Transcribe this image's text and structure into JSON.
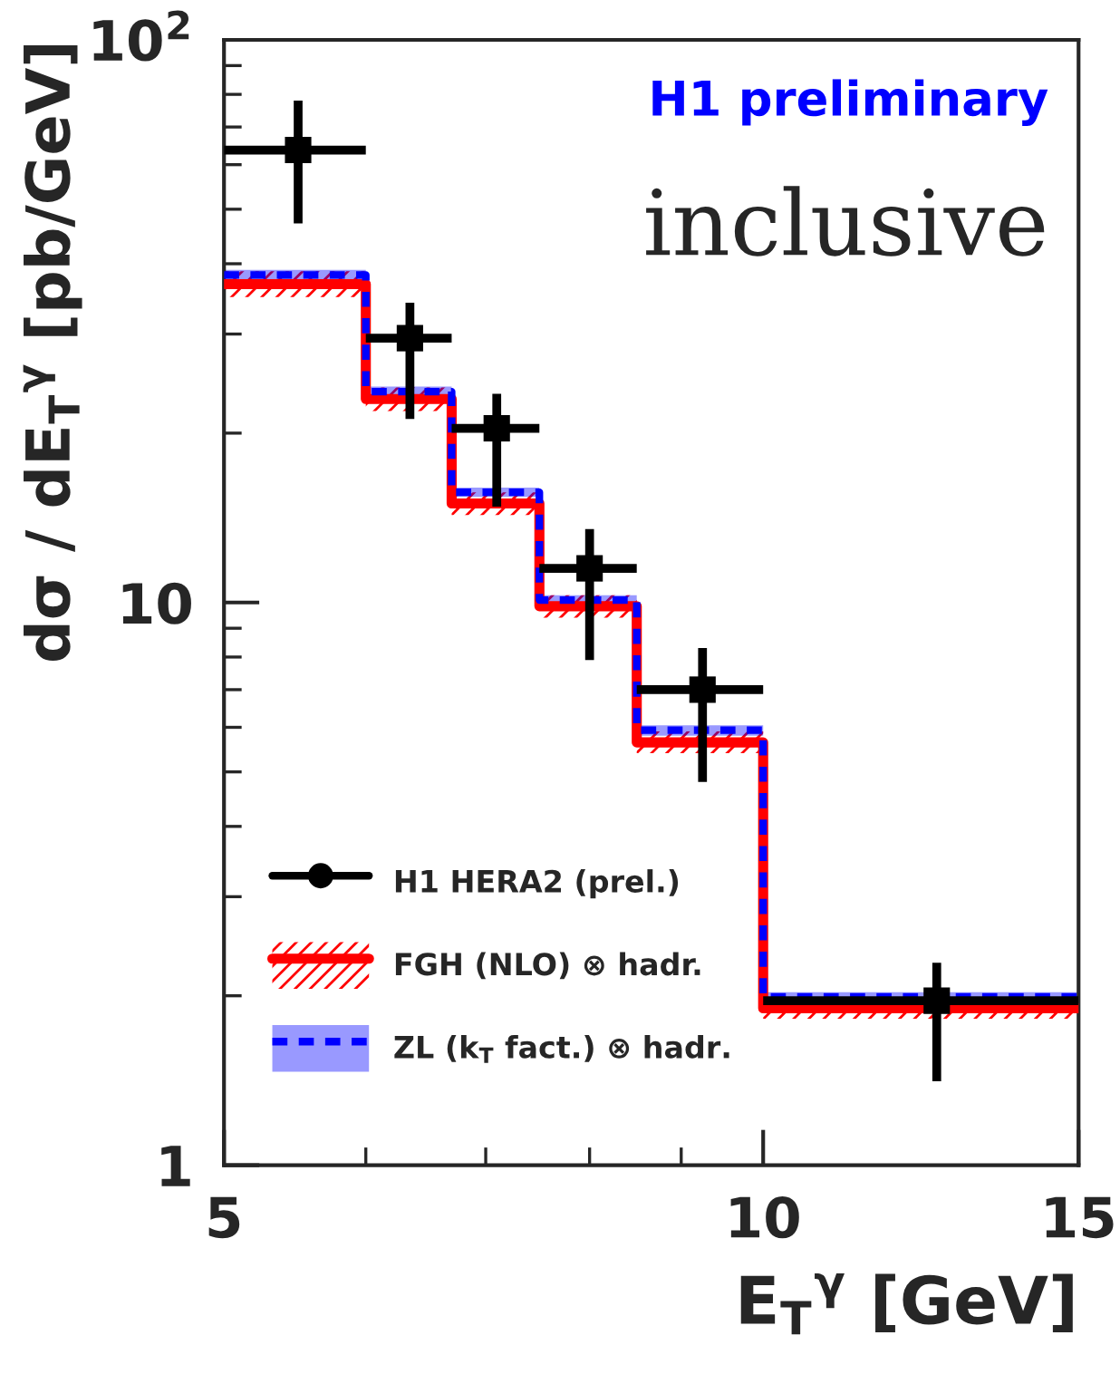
{
  "chart_data": {
    "type": "scatter",
    "xlabel": "E$_{T}$$^{γ}$ [GeV]",
    "ylabel": "dσ / dE$_{T}$$^{γ}$ [pb/GeV]",
    "annotations": [
      "H1 preliminary",
      "inclusive"
    ],
    "log": "xy",
    "xlim": [
      5,
      15
    ],
    "xticks": [
      5,
      10,
      15
    ],
    "ylim": [
      1,
      100
    ],
    "yticks": [
      1,
      10,
      {
        "value": 100,
        "label": "10$^{2}$"
      }
    ],
    "grid": false,
    "legend": "bottom left",
    "series": [
      {
        "name": "H1 HERA2 (prel.)",
        "type": "scatter",
        "color": "#000000",
        "marker": "square",
        "x": [
          5.5,
          6.35,
          7.1,
          8.0,
          9.25,
          12.5
        ],
        "values": [
          63.7,
          29.5,
          20.4,
          11.5,
          7.0,
          1.96
        ],
        "errors": [
          [
            47.2,
            78
          ],
          [
            21.2,
            34.1
          ],
          [
            14.8,
            23.5
          ],
          [
            7.9,
            13.5
          ],
          [
            4.8,
            8.3
          ],
          [
            1.41,
            2.29
          ]
        ],
        "xerrors": [
          [
            5,
            6
          ],
          [
            6,
            6.7
          ],
          [
            6.7,
            7.5
          ],
          [
            7.5,
            8.5
          ],
          [
            8.5,
            10
          ],
          [
            10,
            15
          ]
        ]
      },
      {
        "name": "FGH (NLO) ⊗ hadr.",
        "type": "step",
        "color": "#ff0000",
        "line_style": "solid",
        "x": [
          5,
          6,
          6.7,
          7.5,
          8.5,
          10,
          15
        ],
        "values": [
          36.8,
          23.0,
          15.0,
          9.85,
          5.64,
          1.9,
          1.9
        ],
        "lower": [
          34.9,
          21.9,
          14.3,
          9.4,
          5.4,
          1.82,
          1.82
        ],
        "upper": [
          38.8,
          24.1,
          15.7,
          10.3,
          5.9,
          1.98,
          1.98
        ]
      },
      {
        "name": "ZL (k$_{T}$ fact.) ⊗ hadr.",
        "type": "step",
        "color": "#0000ff",
        "line_style": "dashed",
        "x": [
          5,
          6,
          6.7,
          7.5,
          8.5,
          10,
          15
        ],
        "values": [
          38.2,
          23.7,
          15.7,
          10.1,
          5.93,
          1.99,
          1.99
        ],
        "lower": [
          37.4,
          23.2,
          15.4,
          9.9,
          5.8,
          1.95,
          1.95
        ],
        "upper": [
          39.0,
          24.2,
          16.0,
          10.3,
          6.05,
          2.03,
          2.03
        ]
      }
    ]
  }
}
